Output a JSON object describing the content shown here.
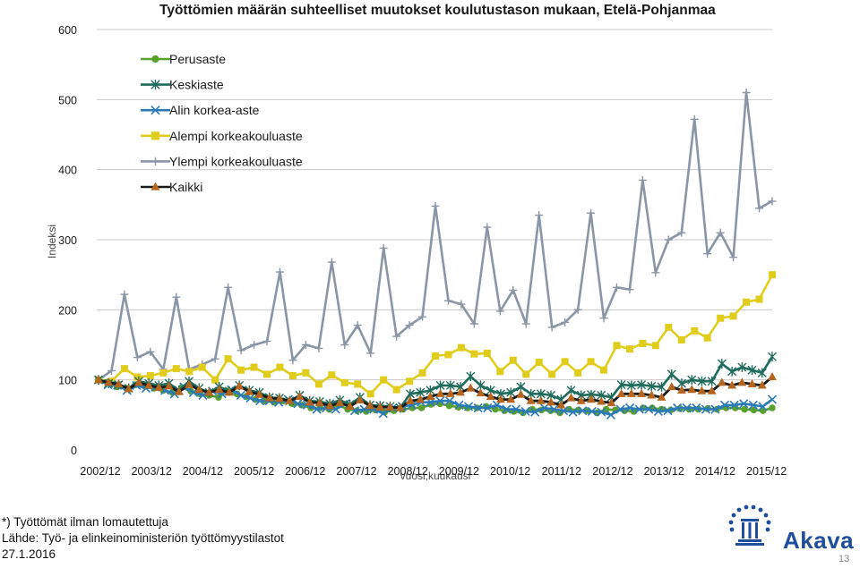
{
  "chart_data": {
    "type": "line",
    "title": "Työttömien määrän suhteelliset muutokset koulutustason mukaan, Etelä-Pohjanmaa",
    "xlabel": "vuosi,kuukausi",
    "ylabel": "Indeksi",
    "ylim": [
      0,
      600
    ],
    "yticks": [
      "0",
      "100",
      "200",
      "300",
      "400",
      "500",
      "600"
    ],
    "xticklabels": [
      "2002/12",
      "2003/12",
      "2004/12",
      "2005/12",
      "2006/12",
      "2007/12",
      "2008/12",
      "2009/12",
      "2010/12",
      "2011/12",
      "2012/12",
      "2013/12",
      "2014/12",
      "2015/12"
    ],
    "legend_position": "top-left",
    "grid": true,
    "series": [
      {
        "name": "Perusaste",
        "color": "#5aa02c",
        "marker": "circle",
        "values": [
          100,
          97,
          90,
          88,
          93,
          91,
          88,
          85,
          82,
          89,
          84,
          80,
          78,
          75,
          84,
          80,
          76,
          72,
          70,
          68,
          70,
          66,
          64,
          60,
          60,
          58,
          64,
          58,
          56,
          55,
          57,
          54,
          56,
          58,
          60,
          60,
          65,
          66,
          63,
          61,
          60,
          60,
          62,
          58,
          56,
          55,
          53,
          58,
          57,
          56,
          53,
          58,
          57,
          56,
          53,
          58,
          57,
          56,
          55,
          60,
          60,
          58,
          57,
          59,
          58,
          58,
          59,
          58,
          60,
          60,
          58,
          57,
          56,
          60
        ]
      },
      {
        "name": "Keskiaste",
        "color": "#1f6b5c",
        "marker": "star",
        "values": [
          100,
          95,
          93,
          88,
          98,
          95,
          92,
          95,
          85,
          98,
          88,
          82,
          90,
          84,
          92,
          85,
          82,
          75,
          74,
          70,
          78,
          70,
          69,
          66,
          71,
          65,
          75,
          64,
          63,
          62,
          60,
          80,
          82,
          85,
          92,
          92,
          90,
          105,
          92,
          85,
          80,
          82,
          90,
          80,
          80,
          78,
          72,
          85,
          78,
          79,
          78,
          75,
          93,
          92,
          93,
          91,
          90,
          108,
          95,
          100,
          98,
          98,
          123,
          112,
          118,
          114,
          110,
          133
        ]
      },
      {
        "name": "Alin korkea-aste",
        "color": "#2b7ab8",
        "marker": "x",
        "values": [
          100,
          93,
          92,
          85,
          92,
          88,
          90,
          85,
          80,
          90,
          82,
          78,
          84,
          80,
          86,
          78,
          74,
          70,
          70,
          68,
          72,
          66,
          64,
          58,
          60,
          58,
          66,
          56,
          58,
          58,
          52,
          60,
          62,
          64,
          68,
          68,
          70,
          70,
          64,
          62,
          60,
          60,
          64,
          58,
          58,
          55,
          54,
          60,
          58,
          56,
          54,
          56,
          55,
          54,
          50,
          58,
          60,
          58,
          58,
          55,
          56,
          60,
          60,
          60,
          58,
          58,
          64,
          64,
          66,
          64,
          62,
          72
        ]
      },
      {
        "name": "Alempi korkeakouluaste",
        "color": "#e0cc1a",
        "marker": "square",
        "values": [
          100,
          98,
          116,
          104,
          106,
          110,
          116,
          112,
          118,
          100,
          130,
          114,
          118,
          108,
          118,
          106,
          110,
          94,
          107,
          96,
          94,
          80,
          100,
          86,
          98,
          110,
          134,
          136,
          146,
          137,
          138,
          112,
          128,
          108,
          125,
          108,
          126,
          110,
          126,
          114,
          149,
          144,
          152,
          149,
          175,
          157,
          170,
          160,
          188,
          191,
          211,
          215,
          250
        ]
      },
      {
        "name": "Ylempi korkeakouluaste",
        "color": "#8a95a5",
        "marker": "plus",
        "values": [
          100,
          113,
          222,
          132,
          140,
          115,
          218,
          115,
          122,
          130,
          232,
          142,
          150,
          155,
          254,
          128,
          150,
          145,
          268,
          150,
          178,
          138,
          288,
          162,
          178,
          190,
          348,
          213,
          208,
          180,
          318,
          198,
          228,
          180,
          335,
          175,
          182,
          200,
          338,
          188,
          232,
          229,
          385,
          253,
          300,
          310,
          472,
          280,
          310,
          275,
          510,
          345,
          355
        ]
      },
      {
        "name": "Kaikki",
        "color": "#1a1a1a",
        "marker": "triangle",
        "marker_color": "#b5651d",
        "values": [
          100,
          96,
          94,
          87,
          96,
          92,
          89,
          91,
          83,
          93,
          86,
          82,
          86,
          82,
          91,
          83,
          79,
          74,
          73,
          70,
          76,
          68,
          67,
          63,
          67,
          62,
          71,
          63,
          61,
          61,
          60,
          70,
          72,
          76,
          80,
          80,
          82,
          88,
          81,
          76,
          72,
          72,
          79,
          70,
          70,
          68,
          64,
          74,
          70,
          72,
          69,
          67,
          80,
          80,
          80,
          78,
          75,
          90,
          85,
          86,
          84,
          84,
          96,
          92,
          96,
          94,
          92,
          104
        ]
      }
    ]
  },
  "footnotes": {
    "line1": "*) Työttömät ilman lomautettuja",
    "line2": "Lähde: Työ- ja elinkeinoministeriön työttömyystilastot",
    "line3": "27.1.2016"
  },
  "logo": {
    "text": "Akava",
    "color": "#1f4e9c"
  },
  "page_number": "13"
}
